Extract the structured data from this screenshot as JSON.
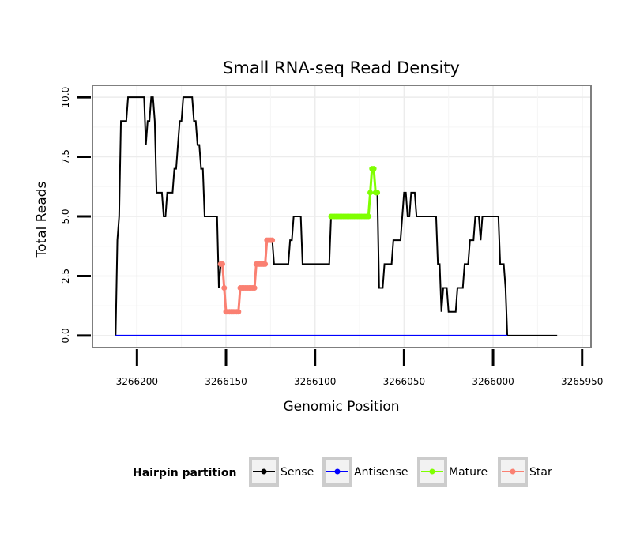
{
  "chart_data": {
    "type": "line",
    "title": "Small RNA-seq Read Density",
    "xlabel": "Genomic Position",
    "ylabel": "Total Reads",
    "xlim": [
      3266225,
      3265945
    ],
    "ylim": [
      -0.5,
      10.5
    ],
    "x_reversed": true,
    "xticks": [
      3266200,
      3266150,
      3266100,
      3266050,
      3266000,
      3265950
    ],
    "xtick_labels": [
      "3266200",
      "3266150",
      "3266100",
      "3266050",
      "3266000",
      "3265950"
    ],
    "yticks": [
      0,
      2.5,
      5,
      7.5,
      10
    ],
    "ytick_labels": [
      "0.0",
      "2.5",
      "5.0",
      "7.5",
      "10.0"
    ],
    "grid": true,
    "legend": {
      "title": "Hairpin partition",
      "position": "bottom",
      "entries": [
        {
          "name": "Sense",
          "color": "#000000"
        },
        {
          "name": "Antisense",
          "color": "#0000ff"
        },
        {
          "name": "Mature",
          "color": "#7fff00"
        },
        {
          "name": "Star",
          "color": "#fa8072"
        }
      ]
    },
    "series": [
      {
        "name": "Sense",
        "color": "#000000",
        "marker": false,
        "points": [
          [
            3266212,
            0
          ],
          [
            3266211,
            4
          ],
          [
            3266210,
            5
          ],
          [
            3266209,
            9
          ],
          [
            3266208,
            9
          ],
          [
            3266207,
            9
          ],
          [
            3266206,
            9
          ],
          [
            3266205,
            10
          ],
          [
            3266204,
            10
          ],
          [
            3266203,
            10
          ],
          [
            3266202,
            10
          ],
          [
            3266201,
            10
          ],
          [
            3266200,
            10
          ],
          [
            3266199,
            10
          ],
          [
            3266198,
            10
          ],
          [
            3266197,
            10
          ],
          [
            3266196,
            10
          ],
          [
            3266195,
            8
          ],
          [
            3266194,
            9
          ],
          [
            3266193,
            9
          ],
          [
            3266192,
            10
          ],
          [
            3266191,
            10
          ],
          [
            3266190,
            9
          ],
          [
            3266189,
            6
          ],
          [
            3266188,
            6
          ],
          [
            3266187,
            6
          ],
          [
            3266186,
            6
          ],
          [
            3266185,
            5
          ],
          [
            3266184,
            5
          ],
          [
            3266183,
            6
          ],
          [
            3266182,
            6
          ],
          [
            3266181,
            6
          ],
          [
            3266180,
            6
          ],
          [
            3266179,
            7
          ],
          [
            3266178,
            7
          ],
          [
            3266177,
            8
          ],
          [
            3266176,
            9
          ],
          [
            3266175,
            9
          ],
          [
            3266174,
            10
          ],
          [
            3266173,
            10
          ],
          [
            3266172,
            10
          ],
          [
            3266171,
            10
          ],
          [
            3266170,
            10
          ],
          [
            3266169,
            10
          ],
          [
            3266168,
            9
          ],
          [
            3266167,
            9
          ],
          [
            3266166,
            8
          ],
          [
            3266165,
            8
          ],
          [
            3266164,
            7
          ],
          [
            3266163,
            7
          ],
          [
            3266162,
            5
          ],
          [
            3266161,
            5
          ],
          [
            3266160,
            5
          ],
          [
            3266159,
            5
          ],
          [
            3266158,
            5
          ],
          [
            3266157,
            5
          ],
          [
            3266156,
            5
          ],
          [
            3266155,
            5
          ],
          [
            3266154,
            2
          ],
          [
            3266153,
            3
          ],
          [
            3266152,
            3
          ],
          [
            3266151,
            2
          ],
          [
            3266150,
            1
          ],
          [
            3266149,
            1
          ],
          [
            3266148,
            1
          ],
          [
            3266147,
            1
          ],
          [
            3266146,
            1
          ],
          [
            3266145,
            1
          ],
          [
            3266144,
            1
          ],
          [
            3266143,
            1
          ],
          [
            3266142,
            2
          ],
          [
            3266141,
            2
          ],
          [
            3266140,
            2
          ],
          [
            3266139,
            2
          ],
          [
            3266138,
            2
          ],
          [
            3266137,
            2
          ],
          [
            3266136,
            2
          ],
          [
            3266135,
            2
          ],
          [
            3266134,
            2
          ],
          [
            3266133,
            3
          ],
          [
            3266132,
            3
          ],
          [
            3266131,
            3
          ],
          [
            3266130,
            3
          ],
          [
            3266129,
            3
          ],
          [
            3266128,
            3
          ],
          [
            3266127,
            4
          ],
          [
            3266126,
            4
          ],
          [
            3266125,
            4
          ],
          [
            3266124,
            4
          ],
          [
            3266123,
            3
          ],
          [
            3266122,
            3
          ],
          [
            3266121,
            3
          ],
          [
            3266120,
            3
          ],
          [
            3266119,
            3
          ],
          [
            3266118,
            3
          ],
          [
            3266117,
            3
          ],
          [
            3266116,
            3
          ],
          [
            3266115,
            3
          ],
          [
            3266114,
            4
          ],
          [
            3266113,
            4
          ],
          [
            3266112,
            5
          ],
          [
            3266111,
            5
          ],
          [
            3266110,
            5
          ],
          [
            3266109,
            5
          ],
          [
            3266108,
            5
          ],
          [
            3266107,
            3
          ],
          [
            3266106,
            3
          ],
          [
            3266105,
            3
          ],
          [
            3266104,
            3
          ],
          [
            3266103,
            3
          ],
          [
            3266102,
            3
          ],
          [
            3266101,
            3
          ],
          [
            3266100,
            3
          ],
          [
            3266099,
            3
          ],
          [
            3266098,
            3
          ],
          [
            3266097,
            3
          ],
          [
            3266096,
            3
          ],
          [
            3266095,
            3
          ],
          [
            3266094,
            3
          ],
          [
            3266093,
            3
          ],
          [
            3266092,
            3
          ],
          [
            3266091,
            5
          ],
          [
            3266090,
            5
          ],
          [
            3266089,
            5
          ],
          [
            3266088,
            5
          ],
          [
            3266087,
            5
          ],
          [
            3266086,
            5
          ],
          [
            3266085,
            5
          ],
          [
            3266084,
            5
          ],
          [
            3266083,
            5
          ],
          [
            3266082,
            5
          ],
          [
            3266081,
            5
          ],
          [
            3266080,
            5
          ],
          [
            3266079,
            5
          ],
          [
            3266078,
            5
          ],
          [
            3266077,
            5
          ],
          [
            3266076,
            5
          ],
          [
            3266075,
            5
          ],
          [
            3266074,
            5
          ],
          [
            3266073,
            5
          ],
          [
            3266072,
            5
          ],
          [
            3266071,
            5
          ],
          [
            3266070,
            5
          ],
          [
            3266069,
            6
          ],
          [
            3266068,
            7
          ],
          [
            3266067,
            7
          ],
          [
            3266066,
            6
          ],
          [
            3266065,
            6
          ],
          [
            3266064,
            2
          ],
          [
            3266063,
            2
          ],
          [
            3266062,
            2
          ],
          [
            3266061,
            3
          ],
          [
            3266060,
            3
          ],
          [
            3266059,
            3
          ],
          [
            3266058,
            3
          ],
          [
            3266057,
            3
          ],
          [
            3266056,
            4
          ],
          [
            3266055,
            4
          ],
          [
            3266054,
            4
          ],
          [
            3266053,
            4
          ],
          [
            3266052,
            4
          ],
          [
            3266051,
            5
          ],
          [
            3266050,
            6
          ],
          [
            3266049,
            6
          ],
          [
            3266048,
            5
          ],
          [
            3266047,
            5
          ],
          [
            3266046,
            6
          ],
          [
            3266045,
            6
          ],
          [
            3266044,
            6
          ],
          [
            3266043,
            5
          ],
          [
            3266042,
            5
          ],
          [
            3266041,
            5
          ],
          [
            3266040,
            5
          ],
          [
            3266039,
            5
          ],
          [
            3266038,
            5
          ],
          [
            3266037,
            5
          ],
          [
            3266036,
            5
          ],
          [
            3266035,
            5
          ],
          [
            3266034,
            5
          ],
          [
            3266033,
            5
          ],
          [
            3266032,
            5
          ],
          [
            3266031,
            3
          ],
          [
            3266030,
            3
          ],
          [
            3266029,
            1
          ],
          [
            3266028,
            2
          ],
          [
            3266027,
            2
          ],
          [
            3266026,
            2
          ],
          [
            3266025,
            1
          ],
          [
            3266024,
            1
          ],
          [
            3266023,
            1
          ],
          [
            3266022,
            1
          ],
          [
            3266021,
            1
          ],
          [
            3266020,
            2
          ],
          [
            3266019,
            2
          ],
          [
            3266018,
            2
          ],
          [
            3266017,
            2
          ],
          [
            3266016,
            3
          ],
          [
            3266015,
            3
          ],
          [
            3266014,
            3
          ],
          [
            3266013,
            4
          ],
          [
            3266012,
            4
          ],
          [
            3266011,
            4
          ],
          [
            3266010,
            5
          ],
          [
            3266009,
            5
          ],
          [
            3266008,
            5
          ],
          [
            3266007,
            4
          ],
          [
            3266006,
            5
          ],
          [
            3266005,
            5
          ],
          [
            3266004,
            5
          ],
          [
            3266003,
            5
          ],
          [
            3266002,
            5
          ],
          [
            3266001,
            5
          ],
          [
            3266000,
            5
          ],
          [
            3265999,
            5
          ],
          [
            3265998,
            5
          ],
          [
            3265997,
            5
          ],
          [
            3265996,
            3
          ],
          [
            3265995,
            3
          ],
          [
            3265994,
            3
          ],
          [
            3265993,
            2
          ],
          [
            3265992,
            0
          ],
          [
            3265988,
            0
          ],
          [
            3265984,
            0
          ],
          [
            3265980,
            0
          ],
          [
            3265976,
            0
          ],
          [
            3265972,
            0
          ],
          [
            3265968,
            0
          ],
          [
            3265964,
            0
          ]
        ]
      },
      {
        "name": "Antisense",
        "color": "#0000ff",
        "marker": false,
        "points": [
          [
            3266212,
            0
          ],
          [
            3265992,
            0
          ]
        ]
      },
      {
        "name": "Mature",
        "color": "#7fff00",
        "marker": true,
        "points": [
          [
            3266091,
            5
          ],
          [
            3266090,
            5
          ],
          [
            3266089,
            5
          ],
          [
            3266088,
            5
          ],
          [
            3266087,
            5
          ],
          [
            3266086,
            5
          ],
          [
            3266085,
            5
          ],
          [
            3266084,
            5
          ],
          [
            3266083,
            5
          ],
          [
            3266082,
            5
          ],
          [
            3266081,
            5
          ],
          [
            3266080,
            5
          ],
          [
            3266079,
            5
          ],
          [
            3266078,
            5
          ],
          [
            3266077,
            5
          ],
          [
            3266076,
            5
          ],
          [
            3266075,
            5
          ],
          [
            3266074,
            5
          ],
          [
            3266073,
            5
          ],
          [
            3266072,
            5
          ],
          [
            3266071,
            5
          ],
          [
            3266070,
            5
          ],
          [
            3266069,
            6
          ],
          [
            3266068,
            7
          ],
          [
            3266067,
            7
          ],
          [
            3266066,
            6
          ],
          [
            3266065,
            6
          ]
        ]
      },
      {
        "name": "Star",
        "color": "#fa8072",
        "marker": true,
        "points": [
          [
            3266153,
            3
          ],
          [
            3266152,
            3
          ],
          [
            3266151,
            2
          ],
          [
            3266150,
            1
          ],
          [
            3266149,
            1
          ],
          [
            3266148,
            1
          ],
          [
            3266147,
            1
          ],
          [
            3266146,
            1
          ],
          [
            3266145,
            1
          ],
          [
            3266144,
            1
          ],
          [
            3266143,
            1
          ],
          [
            3266142,
            2
          ],
          [
            3266141,
            2
          ],
          [
            3266140,
            2
          ],
          [
            3266139,
            2
          ],
          [
            3266138,
            2
          ],
          [
            3266137,
            2
          ],
          [
            3266136,
            2
          ],
          [
            3266135,
            2
          ],
          [
            3266134,
            2
          ],
          [
            3266133,
            3
          ],
          [
            3266132,
            3
          ],
          [
            3266131,
            3
          ],
          [
            3266130,
            3
          ],
          [
            3266129,
            3
          ],
          [
            3266128,
            3
          ],
          [
            3266127,
            4
          ],
          [
            3266126,
            4
          ],
          [
            3266125,
            4
          ],
          [
            3266124,
            4
          ]
        ]
      }
    ]
  }
}
